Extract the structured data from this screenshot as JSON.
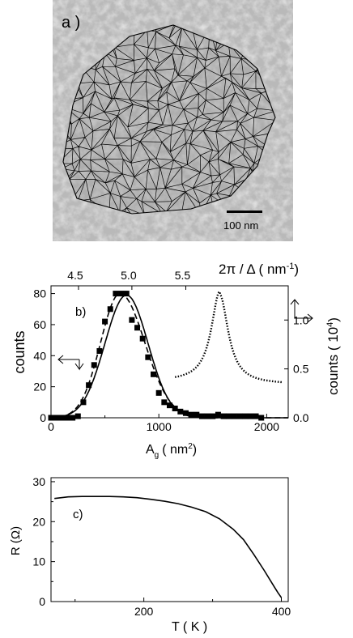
{
  "panel_a": {
    "label": "a )",
    "scalebar_label": "100 nm"
  },
  "chart_data": [
    {
      "type": "scatter",
      "panel_label": "b)",
      "xlabel_base": "A",
      "xlabel_sub": "g",
      "xlabel_unit": "( nm",
      "xlabel_sup": "2",
      "xlabel_close": ")",
      "ylabel": "counts",
      "y2label_main": "counts ( 10",
      "y2label_sup": "4",
      "y2label_close": ")",
      "top_axis_label_main": "2π / Δ ( nm",
      "top_axis_label_sup": "-1",
      "top_axis_label_close": ")",
      "xlim": [
        0,
        2200
      ],
      "ylim": [
        0,
        85
      ],
      "y2lim": [
        0,
        1.35
      ],
      "x_ticks": [
        "0",
        "1000",
        "2000"
      ],
      "x_tick_values": [
        0,
        1000,
        2000
      ],
      "y_ticks": [
        "0",
        "20",
        "40",
        "60",
        "80"
      ],
      "y_tick_values": [
        0,
        20,
        40,
        60,
        80
      ],
      "y2_ticks": [
        "0.0",
        "0.5",
        "1.0"
      ],
      "y2_tick_values": [
        0,
        0.5,
        1.0
      ],
      "top_ticks": [
        "4.5",
        "5.0",
        "5.5"
      ],
      "top_tick_positions_x": [
        255,
        750,
        1250
      ],
      "series": [
        {
          "style": "square-markers",
          "x": [
            0,
            50,
            100,
            150,
            200,
            250,
            300,
            350,
            400,
            450,
            500,
            550,
            600,
            650,
            700,
            750,
            800,
            850,
            900,
            950,
            1000,
            1050,
            1100,
            1150,
            1200,
            1250,
            1300,
            1350,
            1400,
            1450,
            1500,
            1550,
            1600,
            1650,
            1700,
            1750,
            1800,
            1850,
            1900,
            1950
          ],
          "y": [
            0,
            0,
            0,
            0,
            0,
            1,
            10,
            21,
            34,
            43,
            62,
            70,
            80,
            80,
            80,
            63,
            58,
            51,
            39,
            28,
            16,
            10,
            8,
            6,
            4,
            3,
            2,
            2,
            1,
            1,
            1,
            2,
            1,
            1,
            1,
            1,
            1,
            1,
            1,
            0
          ]
        },
        {
          "style": "solid-line",
          "gaussian": {
            "center": 700,
            "sigma": 200,
            "amplitude": 79
          }
        },
        {
          "style": "dashed-line",
          "gaussian": {
            "center": 640,
            "sigma": 180,
            "amplitude": 80,
            "tail_sigma": 230
          }
        },
        {
          "style": "dotted-line",
          "axis": "right",
          "lorentz": {
            "center": 1565,
            "gamma": 95,
            "amplitude": 0.92,
            "base_left": 0.37,
            "base_right": 0.34,
            "x_start": 1150,
            "x_end": 2150
          }
        }
      ]
    },
    {
      "type": "line",
      "panel_label": "c)",
      "xlabel": "T ( K )",
      "ylabel": "R (Ω)",
      "xlim": [
        65,
        410
      ],
      "ylim": [
        0,
        31
      ],
      "x_ticks": [
        "200",
        "400"
      ],
      "x_tick_values": [
        200,
        400
      ],
      "y_ticks": [
        "0",
        "10",
        "20",
        "30"
      ],
      "y_tick_values": [
        0,
        10,
        20,
        30
      ],
      "series": [
        {
          "x": [
            70,
            90,
            110,
            130,
            150,
            170,
            190,
            210,
            230,
            250,
            270,
            290,
            310,
            330,
            345,
            360,
            375,
            390,
            395,
            400
          ],
          "y": [
            25.8,
            26.2,
            26.3,
            26.3,
            26.3,
            26.2,
            26.0,
            25.6,
            25.1,
            24.5,
            23.6,
            22.5,
            20.7,
            18.1,
            15.5,
            11.8,
            7.8,
            3.6,
            2.2,
            1.0
          ]
        }
      ]
    }
  ]
}
